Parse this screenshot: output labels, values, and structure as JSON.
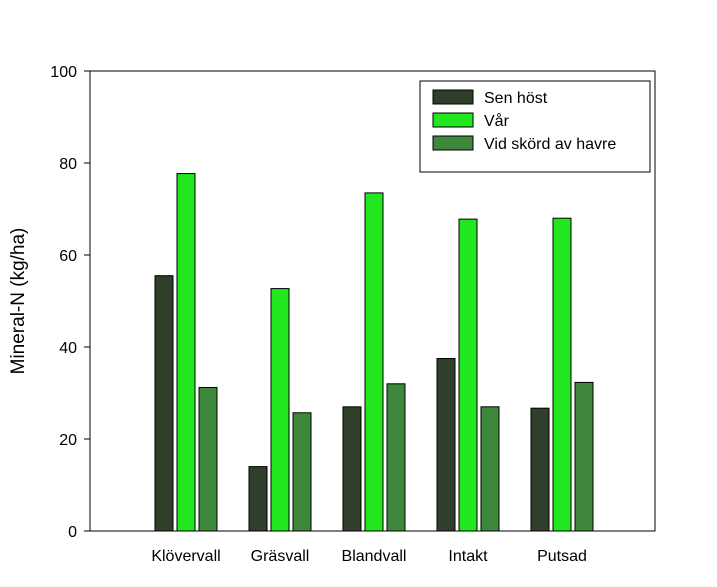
{
  "chart_data": {
    "type": "bar",
    "title": "",
    "xlabel": "",
    "ylabel": "Mineral-N (kg/ha)",
    "ylim": [
      0,
      100
    ],
    "yticks": [
      0,
      20,
      40,
      60,
      80,
      100
    ],
    "categories": [
      "Klövervall",
      "Gräsvall",
      "Blandvall",
      "Intakt",
      "Putsad"
    ],
    "series": [
      {
        "name": "Sen höst",
        "color": "#2f3f2c",
        "values": [
          55.5,
          14.0,
          27.0,
          37.5,
          26.7
        ]
      },
      {
        "name": "Vår",
        "color": "#22e61e",
        "values": [
          77.7,
          52.7,
          73.5,
          67.8,
          68.0
        ]
      },
      {
        "name": "Vid skörd av havre",
        "color": "#3f873c",
        "values": [
          31.2,
          25.7,
          32.0,
          27.0,
          32.3
        ]
      }
    ],
    "grid": false,
    "legend_position": "top-right"
  }
}
